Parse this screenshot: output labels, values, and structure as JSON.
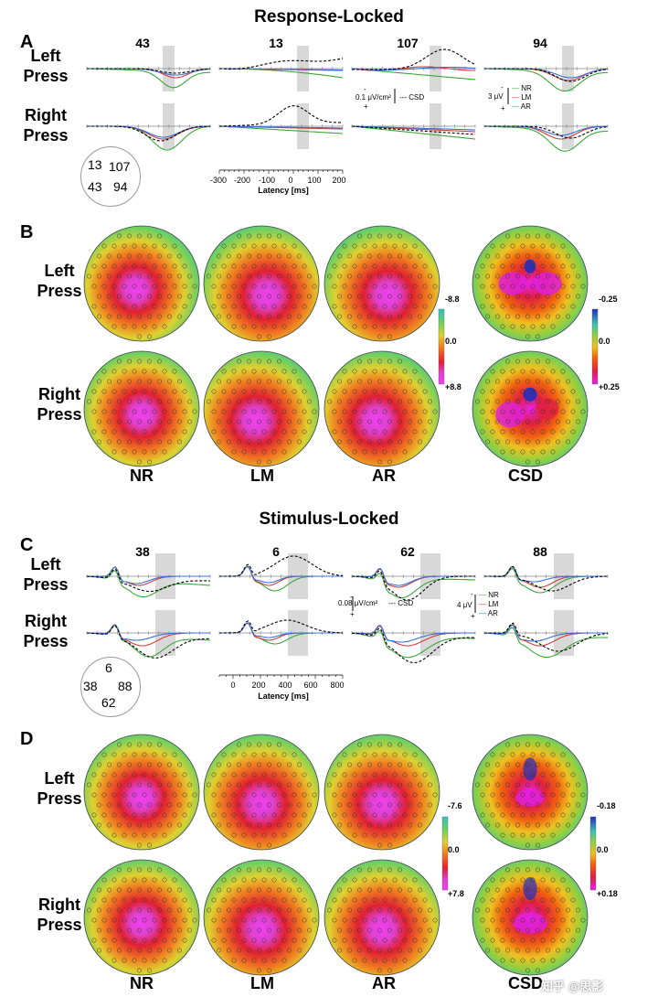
{
  "response_locked": {
    "title": "Response-Locked",
    "panel_a": {
      "letter": "A",
      "rows": [
        "Left\nPress",
        "Right\nPress"
      ],
      "electrodes": [
        "43",
        "13",
        "107",
        "94"
      ],
      "electrode_map_labels": [
        "13",
        "107",
        "43",
        "94"
      ],
      "time_axis": {
        "ticks": [
          "-300",
          "-200",
          "-100",
          "0",
          "100",
          "200"
        ],
        "label": "Latency [ms]"
      },
      "csd_scale": "0.1 μV/cm²",
      "csd_legend": "CSD",
      "signs": [
        "-",
        "+"
      ],
      "uv_scale": "3 μV",
      "legend": [
        "NR",
        "LM",
        "AR"
      ]
    },
    "panel_b": {
      "letter": "B",
      "rows": [
        "Left\nPress",
        "Right\nPress"
      ],
      "columns": [
        "NR",
        "LM",
        "AR",
        "CSD"
      ],
      "colorbar_uv": [
        "-8.8",
        "0.0",
        "+8.8"
      ],
      "colorbar_csd": [
        "-0.25",
        "0.0",
        "+0.25"
      ]
    }
  },
  "stimulus_locked": {
    "title": "Stimulus-Locked",
    "panel_c": {
      "letter": "C",
      "rows": [
        "Left\nPress",
        "Right\nPress"
      ],
      "electrodes": [
        "38",
        "6",
        "62",
        "88"
      ],
      "electrode_map_labels": [
        "6",
        "38",
        "88",
        "62"
      ],
      "time_axis": {
        "ticks": [
          "0",
          "200",
          "400",
          "600",
          "800"
        ],
        "label": "Latency [ms]"
      },
      "csd_scale": "0.08 μV/cm²",
      "csd_legend": "CSD",
      "signs": [
        "-",
        "+"
      ],
      "uv_scale": "4 μV",
      "legend": [
        "NR",
        "LM",
        "AR"
      ]
    },
    "panel_d": {
      "letter": "D",
      "rows": [
        "Left\nPress",
        "Right\nPress"
      ],
      "columns": [
        "NR",
        "LM",
        "AR",
        "CSD"
      ],
      "colorbar_uv": [
        "-7.6",
        "0.0",
        "+7.8"
      ],
      "colorbar_csd": [
        "-0.18",
        "0.0",
        "+0.18"
      ]
    }
  },
  "watermark": "知乎 @思影",
  "colors": {
    "NR": "#3aa63a",
    "LM": "#d43a3a",
    "AR": "#3a6fd4",
    "CSD": "#000000",
    "shade": "#d8d8d8"
  }
}
